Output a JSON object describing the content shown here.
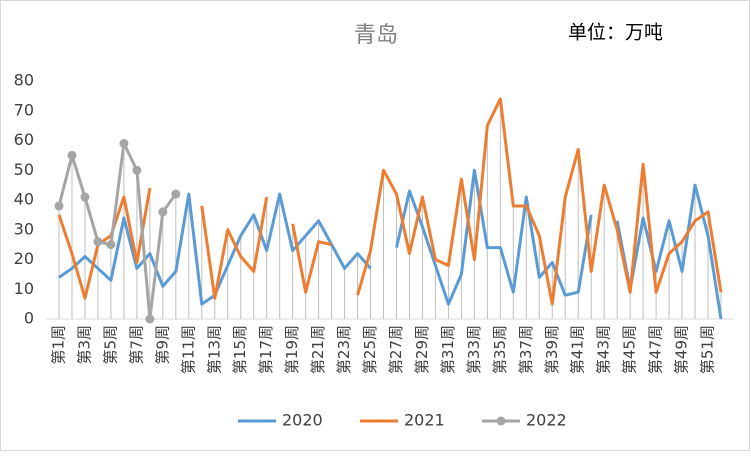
{
  "chart_data": {
    "type": "line",
    "title": "青岛",
    "annotation": "单位：万吨",
    "categories": [
      "第1周",
      null,
      "第3周",
      null,
      "第5周",
      null,
      "第7周",
      null,
      "第9周",
      null,
      "第11周",
      null,
      "第13周",
      null,
      "第15周",
      null,
      "第17周",
      null,
      "第19周",
      null,
      "第21周",
      null,
      "第23周",
      null,
      "第25周",
      null,
      "第27周",
      null,
      "第29周",
      null,
      "第31周",
      null,
      "第33周",
      null,
      "第35周",
      null,
      "第37周",
      null,
      "第39周",
      null,
      "第41周",
      null,
      "第43周",
      null,
      "第45周",
      null,
      "第47周",
      null,
      "第49周",
      null,
      "第51周",
      null
    ],
    "series": [
      {
        "name": "2020",
        "color": "#5b9bd5",
        "values": [
          14,
          17,
          21,
          17,
          13,
          34,
          17,
          22,
          11,
          16,
          42,
          5,
          8,
          18,
          28,
          35,
          23,
          42,
          23,
          28,
          33,
          25,
          17,
          22,
          17,
          null,
          24,
          43,
          31,
          18,
          5,
          15,
          50,
          24,
          24,
          9,
          41,
          14,
          19,
          8,
          9,
          35,
          null,
          33,
          10,
          34,
          16,
          33,
          16,
          45,
          28,
          0
        ]
      },
      {
        "name": "2021",
        "color": "#ed7d31",
        "values": [
          35,
          22,
          7,
          25,
          28,
          41,
          19,
          44,
          null,
          null,
          null,
          38,
          7,
          30,
          21,
          16,
          41,
          null,
          32,
          9,
          26,
          25,
          null,
          8,
          23,
          50,
          42,
          22,
          41,
          20,
          18,
          47,
          20,
          65,
          74,
          38,
          38,
          28,
          5,
          41,
          57,
          16,
          45,
          30,
          9,
          52,
          9,
          22,
          26,
          33,
          36,
          9
        ]
      },
      {
        "name": "2022",
        "color": "#a5a5a5",
        "markers": true,
        "values": [
          38,
          55,
          41,
          26,
          25,
          59,
          50,
          0,
          36,
          42,
          null,
          null,
          null,
          null,
          null,
          null,
          null,
          null,
          null,
          null,
          null,
          null,
          null,
          null,
          null,
          null,
          null,
          null,
          null,
          null,
          null,
          null,
          null,
          null,
          null,
          null,
          null,
          null,
          null,
          null,
          null,
          null,
          null,
          null,
          null,
          null,
          null,
          null,
          null,
          null,
          null,
          null
        ]
      }
    ],
    "ylim": [
      0,
      80
    ],
    "yticks": [
      0,
      10,
      20,
      30,
      40,
      50,
      60,
      70,
      80
    ],
    "drop_lines": true,
    "legend": "bottom"
  }
}
